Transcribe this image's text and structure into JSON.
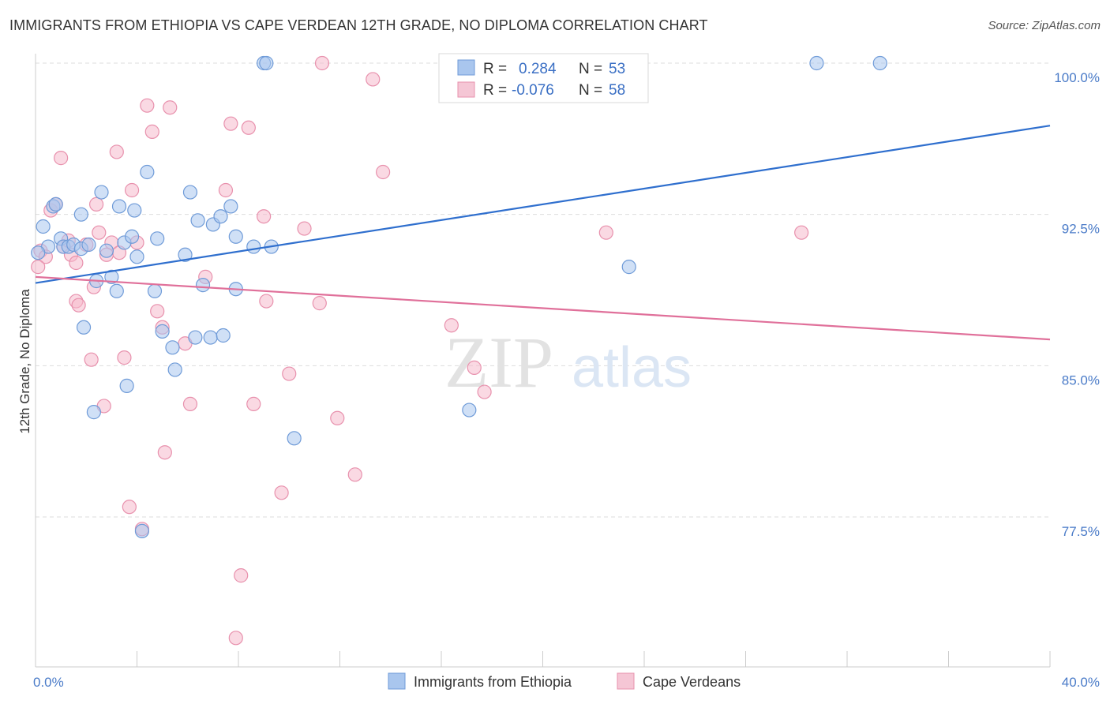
{
  "header": {
    "title": "IMMIGRANTS FROM ETHIOPIA VS CAPE VERDEAN 12TH GRADE, NO DIPLOMA CORRELATION CHART",
    "source": "Source: ZipAtlas.com"
  },
  "watermark": {
    "zip": "ZIP",
    "atlas": "atlas"
  },
  "colors": {
    "blue_fill": "#a9c6ee",
    "blue_stroke": "#6f9bd8",
    "blue_line": "#2f6fce",
    "pink_fill": "#f5b9cc",
    "pink_stroke": "#e891ad",
    "pink_line": "#e0709a",
    "tick_text": "#4a7bc8",
    "grid": "#dddddd"
  },
  "legend": {
    "r_label": "R =",
    "n_label": "N =",
    "rows": [
      {
        "r": "0.284",
        "n": "53"
      },
      {
        "r": "-0.076",
        "n": "58"
      }
    ]
  },
  "chart_data": {
    "type": "scatter",
    "title": "IMMIGRANTS FROM ETHIOPIA VS CAPE VERDEAN 12TH GRADE, NO DIPLOMA CORRELATION CHART",
    "xlabel": "",
    "ylabel": "12th Grade, No Diploma",
    "xlim": [
      0,
      40
    ],
    "ylim": [
      71.5,
      101
    ],
    "x_tick_labels": [
      {
        "value": 0,
        "label": "0.0%"
      },
      {
        "value": 40,
        "label": "40.0%"
      }
    ],
    "y_ticks": [
      {
        "value": 100,
        "label": "100.0%"
      },
      {
        "value": 92.5,
        "label": "92.5%"
      },
      {
        "value": 85,
        "label": "85.0%"
      },
      {
        "value": 77.5,
        "label": "77.5%"
      }
    ],
    "grid": true,
    "legend_position": "top-center",
    "series": [
      {
        "name": "Immigrants from Ethiopia",
        "color": "#a9c6ee",
        "trend": {
          "x": [
            0,
            40
          ],
          "y": [
            89.1,
            96.9
          ]
        },
        "points": [
          [
            0.3,
            91.9
          ],
          [
            0.5,
            90.9
          ],
          [
            0.7,
            92.9
          ],
          [
            0.8,
            93.0
          ],
          [
            1.0,
            91.3
          ],
          [
            1.1,
            90.9
          ],
          [
            1.3,
            90.9
          ],
          [
            1.5,
            91.0
          ],
          [
            1.8,
            92.5
          ],
          [
            1.8,
            90.8
          ],
          [
            2.1,
            91.0
          ],
          [
            2.4,
            89.2
          ],
          [
            2.6,
            93.6
          ],
          [
            2.8,
            90.7
          ],
          [
            3.0,
            89.4
          ],
          [
            3.2,
            88.7
          ],
          [
            3.3,
            92.9
          ],
          [
            3.5,
            91.1
          ],
          [
            3.8,
            91.4
          ],
          [
            3.9,
            92.7
          ],
          [
            4.0,
            90.4
          ],
          [
            4.4,
            94.6
          ],
          [
            4.8,
            91.3
          ],
          [
            4.7,
            88.7
          ],
          [
            5.0,
            86.7
          ],
          [
            5.4,
            85.9
          ],
          [
            5.5,
            84.8
          ],
          [
            5.9,
            90.5
          ],
          [
            6.1,
            93.6
          ],
          [
            6.3,
            86.4
          ],
          [
            6.4,
            92.2
          ],
          [
            6.6,
            89.0
          ],
          [
            6.9,
            86.4
          ],
          [
            7.0,
            92.0
          ],
          [
            7.3,
            92.4
          ],
          [
            7.4,
            86.5
          ],
          [
            7.7,
            92.9
          ],
          [
            7.9,
            88.8
          ],
          [
            7.9,
            91.4
          ],
          [
            8.6,
            90.9
          ],
          [
            9.0,
            100.0
          ],
          [
            9.1,
            100.0
          ],
          [
            9.3,
            90.9
          ],
          [
            10.2,
            81.4
          ],
          [
            1.9,
            86.9
          ],
          [
            2.3,
            82.7
          ],
          [
            3.6,
            84.0
          ],
          [
            4.2,
            76.8
          ],
          [
            17.1,
            82.8
          ],
          [
            23.4,
            89.9
          ],
          [
            30.8,
            100.0
          ],
          [
            33.3,
            100.0
          ],
          [
            0.1,
            90.6
          ]
        ]
      },
      {
        "name": "Cape Verdeans",
        "color": "#f5b9cc",
        "trend": {
          "x": [
            0,
            40
          ],
          "y": [
            89.4,
            86.3
          ]
        },
        "points": [
          [
            0.2,
            90.7
          ],
          [
            0.4,
            90.4
          ],
          [
            0.6,
            92.7
          ],
          [
            0.8,
            93.0
          ],
          [
            1.0,
            95.3
          ],
          [
            1.1,
            90.9
          ],
          [
            1.3,
            91.2
          ],
          [
            1.4,
            90.5
          ],
          [
            1.6,
            90.1
          ],
          [
            1.6,
            88.2
          ],
          [
            1.7,
            88.0
          ],
          [
            2.0,
            91.0
          ],
          [
            2.2,
            85.3
          ],
          [
            2.3,
            88.9
          ],
          [
            2.4,
            93.0
          ],
          [
            2.5,
            91.6
          ],
          [
            2.7,
            83.0
          ],
          [
            2.8,
            90.5
          ],
          [
            3.0,
            91.1
          ],
          [
            3.2,
            95.6
          ],
          [
            3.3,
            90.6
          ],
          [
            3.5,
            85.4
          ],
          [
            3.7,
            78.0
          ],
          [
            3.8,
            93.7
          ],
          [
            4.0,
            91.1
          ],
          [
            4.2,
            76.9
          ],
          [
            4.4,
            97.9
          ],
          [
            4.6,
            96.6
          ],
          [
            4.8,
            87.7
          ],
          [
            5.0,
            86.9
          ],
          [
            5.1,
            80.7
          ],
          [
            5.3,
            97.8
          ],
          [
            5.9,
            86.1
          ],
          [
            6.1,
            83.1
          ],
          [
            6.7,
            89.4
          ],
          [
            7.5,
            93.7
          ],
          [
            7.7,
            97.0
          ],
          [
            7.9,
            71.5
          ],
          [
            8.1,
            74.6
          ],
          [
            8.4,
            96.8
          ],
          [
            8.6,
            83.1
          ],
          [
            9.0,
            92.4
          ],
          [
            9.1,
            88.2
          ],
          [
            9.7,
            78.7
          ],
          [
            10.0,
            84.6
          ],
          [
            10.6,
            91.8
          ],
          [
            11.2,
            88.1
          ],
          [
            11.3,
            100.0
          ],
          [
            11.9,
            82.4
          ],
          [
            12.6,
            79.6
          ],
          [
            13.3,
            99.2
          ],
          [
            13.7,
            94.6
          ],
          [
            16.4,
            87.0
          ],
          [
            17.3,
            84.9
          ],
          [
            17.7,
            83.7
          ],
          [
            22.5,
            91.6
          ],
          [
            30.2,
            91.6
          ],
          [
            0.1,
            89.9
          ]
        ]
      }
    ]
  }
}
